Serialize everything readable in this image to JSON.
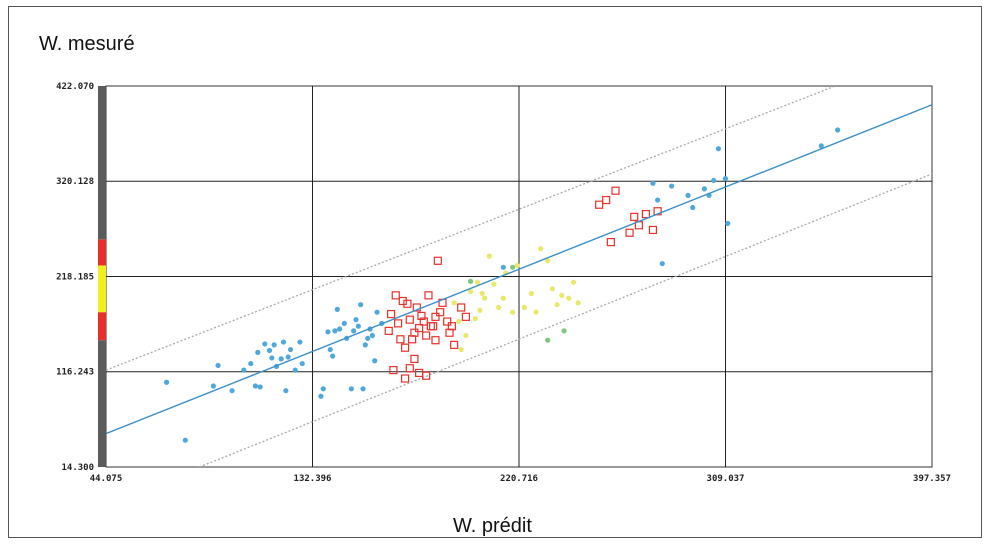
{
  "chart_data": {
    "type": "scatter",
    "ylabel": "W. mesuré",
    "xlabel": "W. prédit",
    "xlim": [
      44.075,
      397.357
    ],
    "ylim": [
      14.3,
      422.07
    ],
    "x_ticks": [
      "44.075",
      "132.396",
      "220.716",
      "309.037",
      "397.357"
    ],
    "y_ticks": [
      "14.300",
      "116.243",
      "218.185",
      "320.128",
      "422.070"
    ],
    "x_tick_values": [
      44.075,
      132.396,
      220.716,
      309.037,
      397.357
    ],
    "y_tick_values": [
      14.3,
      116.243,
      218.185,
      320.128,
      422.07
    ],
    "grid": true,
    "fit_line": [
      [
        44.075,
        50.0
      ],
      [
        397.357,
        402.0
      ]
    ],
    "band_upper": [
      [
        44.075,
        118.0
      ],
      [
        356.0,
        422.07
      ]
    ],
    "band_lower": [
      [
        84.0,
        14.3
      ],
      [
        397.357,
        328.0
      ]
    ],
    "colors": {
      "blue": "#4fa8dc",
      "red": "#e8302a",
      "yellow": "#e8e86a",
      "green": "#7ec77e",
      "line": "#3a8fc8",
      "band": "#a8a8a8"
    },
    "series": [
      {
        "color_key": "blue",
        "marker": "dot",
        "points": [
          [
            70,
            105
          ],
          [
            78,
            43
          ],
          [
            90,
            101
          ],
          [
            92,
            123
          ],
          [
            98,
            96
          ],
          [
            103,
            118
          ],
          [
            106,
            125
          ],
          [
            108,
            101
          ],
          [
            110,
            100
          ],
          [
            109,
            137
          ],
          [
            112,
            146
          ],
          [
            114,
            139
          ],
          [
            115,
            131
          ],
          [
            116,
            145
          ],
          [
            117,
            122
          ],
          [
            119,
            130
          ],
          [
            120,
            148
          ],
          [
            121,
            96
          ],
          [
            122,
            132
          ],
          [
            123,
            140
          ],
          [
            125,
            118
          ],
          [
            127,
            148
          ],
          [
            128,
            125
          ],
          [
            136,
            90
          ],
          [
            137,
            98
          ],
          [
            139,
            159
          ],
          [
            140,
            140
          ],
          [
            141,
            133
          ],
          [
            142,
            160
          ],
          [
            143,
            183
          ],
          [
            144,
            162
          ],
          [
            146,
            168
          ],
          [
            147,
            152
          ],
          [
            149,
            98
          ],
          [
            150,
            160
          ],
          [
            151,
            172
          ],
          [
            152,
            165
          ],
          [
            153,
            188
          ],
          [
            154,
            98
          ],
          [
            155,
            145
          ],
          [
            156,
            152
          ],
          [
            157,
            162
          ],
          [
            158,
            155
          ],
          [
            159,
            128
          ],
          [
            160,
            180
          ],
          [
            162,
            168
          ],
          [
            214,
            228
          ],
          [
            278,
            318
          ],
          [
            280,
            300
          ],
          [
            282,
            232
          ],
          [
            286,
            315
          ],
          [
            293,
            305
          ],
          [
            295,
            292
          ],
          [
            300,
            312
          ],
          [
            302,
            305
          ],
          [
            304,
            321
          ],
          [
            306,
            355
          ],
          [
            309,
            323
          ],
          [
            310,
            275
          ],
          [
            350,
            358
          ],
          [
            357,
            375
          ]
        ]
      },
      {
        "color_key": "red",
        "marker": "square",
        "points": [
          [
            165,
            160
          ],
          [
            166,
            178
          ],
          [
            167,
            118
          ],
          [
            168,
            198
          ],
          [
            169,
            168
          ],
          [
            170,
            151
          ],
          [
            171,
            192
          ],
          [
            172,
            109
          ],
          [
            172,
            142
          ],
          [
            173,
            189
          ],
          [
            174,
            120
          ],
          [
            174,
            172
          ],
          [
            175,
            151
          ],
          [
            176,
            158
          ],
          [
            176,
            130
          ],
          [
            177,
            185
          ],
          [
            178,
            163
          ],
          [
            178,
            115
          ],
          [
            179,
            176
          ],
          [
            180,
            170
          ],
          [
            181,
            112
          ],
          [
            181,
            155
          ],
          [
            182,
            198
          ],
          [
            183,
            165
          ],
          [
            184,
            165
          ],
          [
            185,
            150
          ],
          [
            185,
            175
          ],
          [
            186,
            235
          ],
          [
            187,
            180
          ],
          [
            188,
            190
          ],
          [
            190,
            170
          ],
          [
            191,
            158
          ],
          [
            192,
            165
          ],
          [
            193,
            145
          ],
          [
            196,
            185
          ],
          [
            198,
            175
          ],
          [
            255,
            295
          ],
          [
            258,
            300
          ],
          [
            260,
            255
          ],
          [
            262,
            310
          ],
          [
            268,
            265
          ],
          [
            270,
            282
          ],
          [
            272,
            273
          ],
          [
            275,
            285
          ],
          [
            278,
            268
          ],
          [
            280,
            288
          ]
        ]
      },
      {
        "color_key": "yellow",
        "marker": "dot",
        "points": [
          [
            193,
            190
          ],
          [
            195,
            170
          ],
          [
            196,
            140
          ],
          [
            198,
            155
          ],
          [
            200,
            202
          ],
          [
            202,
            173
          ],
          [
            203,
            212
          ],
          [
            204,
            182
          ],
          [
            205,
            200
          ],
          [
            206,
            195
          ],
          [
            208,
            240
          ],
          [
            210,
            210
          ],
          [
            212,
            185
          ],
          [
            214,
            195
          ],
          [
            215,
            222
          ],
          [
            218,
            180
          ],
          [
            220,
            230
          ],
          [
            223,
            185
          ],
          [
            226,
            200
          ],
          [
            228,
            180
          ],
          [
            230,
            248
          ],
          [
            233,
            235
          ],
          [
            235,
            205
          ],
          [
            237,
            188
          ],
          [
            239,
            198
          ],
          [
            242,
            195
          ],
          [
            244,
            212
          ],
          [
            246,
            190
          ]
        ]
      },
      {
        "color_key": "green",
        "marker": "dot",
        "points": [
          [
            200,
            213
          ],
          [
            218,
            228
          ],
          [
            233,
            150
          ],
          [
            240,
            160
          ]
        ]
      }
    ]
  },
  "axis_title_y": "W. mesuré",
  "axis_title_x": "W. prédit",
  "side_bar": {
    "segments": [
      {
        "from": 14.3,
        "to": 150.0,
        "color": "#5b5b5b"
      },
      {
        "from": 150.0,
        "to": 180.0,
        "color": "#e8302a"
      },
      {
        "from": 180.0,
        "to": 230.0,
        "color": "#f0f020"
      },
      {
        "from": 230.0,
        "to": 258.0,
        "color": "#e8302a"
      },
      {
        "from": 258.0,
        "to": 422.07,
        "color": "#5b5b5b"
      }
    ]
  }
}
